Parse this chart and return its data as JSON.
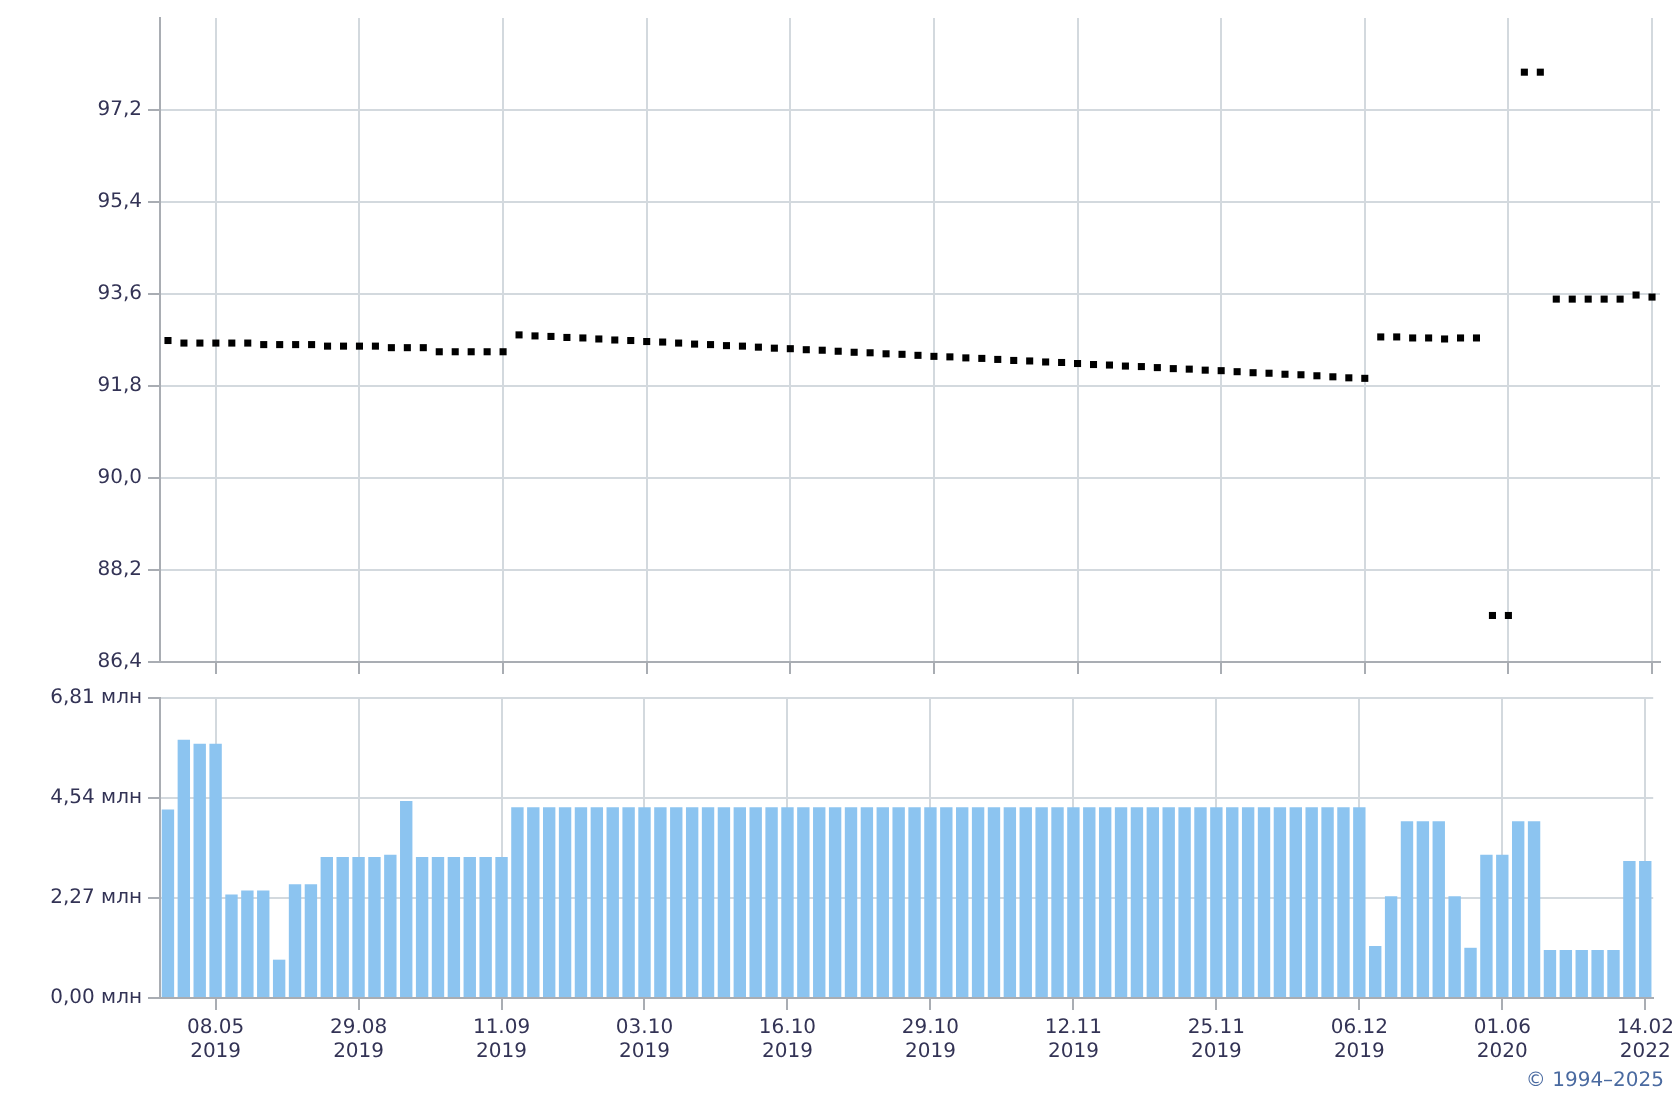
{
  "chart_data": [
    {
      "type": "scatter",
      "categories": [
        null,
        null,
        null,
        null,
        null,
        null,
        null,
        null,
        null,
        null,
        null,
        null,
        null,
        null,
        null,
        null,
        null,
        null,
        null,
        null,
        null,
        null,
        null,
        null,
        null,
        null,
        null,
        null,
        null,
        null,
        null,
        null,
        null,
        null,
        null,
        null,
        null,
        null,
        null,
        null,
        null,
        null,
        null,
        null,
        null,
        null,
        null,
        null,
        null,
        null,
        null,
        null,
        null,
        null,
        null,
        null,
        null,
        null,
        null,
        null,
        null,
        null,
        null,
        null,
        null,
        null,
        null,
        null,
        null,
        null,
        null,
        null,
        null,
        null,
        null,
        null,
        null,
        null,
        null,
        null,
        null,
        null,
        null,
        null,
        null,
        null,
        null,
        null,
        null,
        null,
        null,
        null,
        null,
        null
      ],
      "values": [
        92.69,
        92.64,
        92.64,
        92.64,
        92.64,
        92.64,
        92.61,
        92.61,
        92.61,
        92.61,
        92.58,
        92.58,
        92.58,
        92.58,
        92.55,
        92.55,
        92.55,
        92.47,
        92.47,
        92.47,
        92.47,
        92.47,
        92.8,
        92.78,
        92.77,
        92.75,
        92.74,
        92.72,
        92.7,
        92.69,
        92.67,
        92.66,
        92.64,
        92.62,
        92.61,
        92.59,
        92.58,
        92.56,
        92.54,
        92.53,
        92.51,
        92.5,
        92.48,
        92.46,
        92.45,
        92.43,
        92.42,
        92.4,
        92.38,
        92.37,
        92.35,
        92.34,
        92.32,
        92.3,
        92.29,
        92.27,
        92.26,
        92.24,
        92.22,
        92.21,
        92.19,
        92.18,
        92.16,
        92.14,
        92.13,
        92.11,
        92.1,
        92.08,
        92.06,
        92.05,
        92.03,
        92.02,
        92.0,
        91.98,
        91.96,
        91.95,
        92.76,
        92.76,
        92.74,
        92.74,
        92.72,
        92.74,
        92.74,
        87.31,
        87.31,
        97.94,
        97.94,
        93.5,
        93.5,
        93.5,
        93.5,
        93.5,
        93.58,
        93.54
      ],
      "color": "#000000",
      "marker": "square",
      "ylim": [
        86.4,
        99.0
      ],
      "yticks": [
        {
          "value": 86.4,
          "label": "86,4"
        },
        {
          "value": 88.2,
          "label": "88,2"
        },
        {
          "value": 90.0,
          "label": "90,0"
        },
        {
          "value": 91.8,
          "label": "91,8"
        },
        {
          "value": 93.6,
          "label": "93,6"
        },
        {
          "value": 95.4,
          "label": "95,4"
        },
        {
          "value": 97.2,
          "label": "97,2"
        }
      ],
      "grid": true,
      "tick_labels": "y"
    },
    {
      "type": "bar",
      "categories": [
        null,
        null,
        null,
        "08.05\n2019",
        null,
        null,
        null,
        null,
        null,
        null,
        null,
        null,
        "29.08\n2019",
        null,
        null,
        null,
        null,
        null,
        null,
        null,
        null,
        "11.09\n2019",
        null,
        null,
        null,
        null,
        null,
        null,
        null,
        null,
        "03.10\n2019",
        null,
        null,
        null,
        null,
        null,
        null,
        null,
        null,
        "16.10\n2019",
        null,
        null,
        null,
        null,
        null,
        null,
        null,
        null,
        "29.10\n2019",
        null,
        null,
        null,
        null,
        null,
        null,
        null,
        null,
        "12.11\n2019",
        null,
        null,
        null,
        null,
        null,
        null,
        null,
        null,
        "25.11\n2019",
        null,
        null,
        null,
        null,
        null,
        null,
        null,
        null,
        "06.12\n2019",
        null,
        null,
        null,
        null,
        null,
        null,
        null,
        null,
        "01.06\n2020",
        null,
        null,
        null,
        null,
        null,
        null,
        null,
        null,
        "14.02\n2022"
      ],
      "values": [
        4.28,
        5.86,
        5.77,
        5.77,
        2.35,
        2.44,
        2.44,
        0.87,
        2.58,
        2.58,
        3.2,
        3.2,
        3.2,
        3.2,
        3.25,
        4.47,
        3.2,
        3.2,
        3.2,
        3.2,
        3.2,
        3.2,
        4.33,
        4.33,
        4.33,
        4.33,
        4.33,
        4.33,
        4.33,
        4.33,
        4.33,
        4.33,
        4.33,
        4.33,
        4.33,
        4.33,
        4.33,
        4.33,
        4.33,
        4.33,
        4.33,
        4.33,
        4.33,
        4.33,
        4.33,
        4.33,
        4.33,
        4.33,
        4.33,
        4.33,
        4.33,
        4.33,
        4.33,
        4.33,
        4.33,
        4.33,
        4.33,
        4.33,
        4.33,
        4.33,
        4.33,
        4.33,
        4.33,
        4.33,
        4.33,
        4.33,
        4.33,
        4.33,
        4.33,
        4.33,
        4.33,
        4.33,
        4.33,
        4.33,
        4.33,
        4.33,
        1.18,
        2.31,
        4.01,
        4.01,
        4.01,
        2.31,
        1.14,
        3.25,
        3.25,
        4.01,
        4.01,
        1.09,
        1.09,
        1.09,
        1.09,
        1.09,
        3.11,
        3.11
      ],
      "color": "#8cc4f0",
      "ylim": [
        0,
        6.81
      ],
      "yticks": [
        {
          "value": 0,
          "label": "0,00 млн"
        },
        {
          "value": 2.27,
          "label": "2,27 млн"
        },
        {
          "value": 4.54,
          "label": "4,54 млн"
        },
        {
          "value": 6.81,
          "label": "6,81 млн"
        }
      ],
      "grid": true,
      "annotations": [
        "© 1994–2025"
      ]
    }
  ]
}
